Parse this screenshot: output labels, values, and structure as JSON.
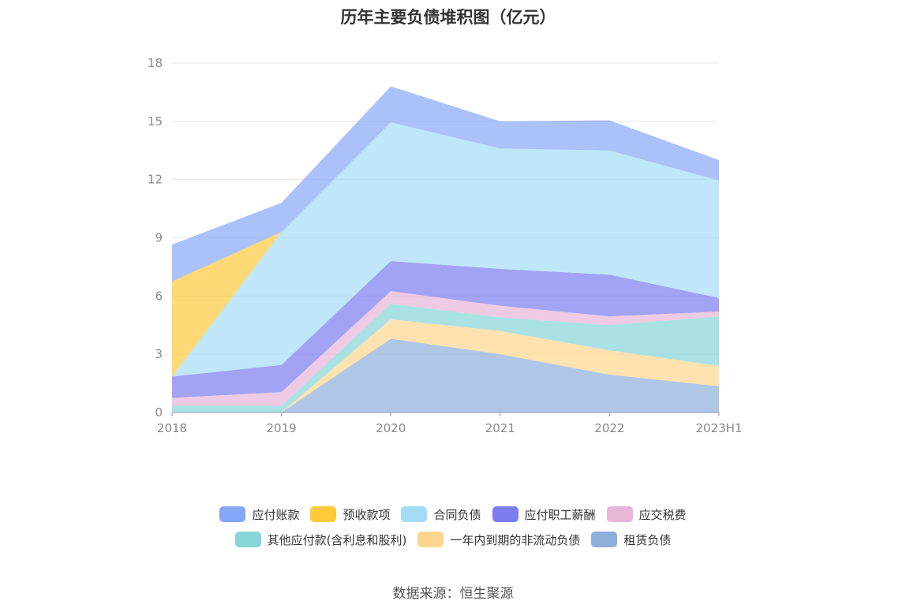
{
  "title": "历年主要负债堆积图（亿元）",
  "source": "数据来源：恒生聚源",
  "chart_data": {
    "type": "area",
    "stacked": true,
    "title": "历年主要负债堆积图（亿元）",
    "categories": [
      "2018",
      "2019",
      "2020",
      "2021",
      "2022",
      "2023H1"
    ],
    "y_ticks": [
      "0",
      "3",
      "6",
      "9",
      "12",
      "15",
      "18"
    ],
    "ylim": [
      0,
      18
    ],
    "grid": true,
    "legend_position": "bottom",
    "series": [
      {
        "name": "租赁负债",
        "color": "#8eaedc",
        "values": [
          0,
          0,
          3.8,
          3.0,
          1.95,
          1.35
        ]
      },
      {
        "name": "一年内到期的非流动负债",
        "color": "#fed58e",
        "values": [
          0,
          0,
          1.0,
          1.2,
          1.25,
          1.05
        ]
      },
      {
        "name": "其他应付款(含利息和股利)",
        "color": "#86d5d8",
        "values": [
          0.35,
          0.35,
          0.8,
          0.7,
          1.3,
          2.55
        ]
      },
      {
        "name": "应交税费",
        "color": "#e8b4d8",
        "values": [
          0.4,
          0.7,
          0.65,
          0.6,
          0.45,
          0.25
        ]
      },
      {
        "name": "应付职工薪酬",
        "color": "#7b7cf0",
        "values": [
          1.1,
          1.4,
          1.55,
          1.9,
          2.15,
          0.7
        ]
      },
      {
        "name": "合同负债",
        "color": "#a4dcf6",
        "values": [
          0,
          6.85,
          7.15,
          6.2,
          6.4,
          6.05
        ]
      },
      {
        "name": "预收款项",
        "color": "#fec93b",
        "values": [
          4.9,
          0,
          0,
          0,
          0,
          0
        ]
      },
      {
        "name": "应付账款",
        "color": "#86a6f8",
        "values": [
          1.9,
          1.5,
          1.85,
          1.4,
          1.55,
          1.05
        ]
      }
    ]
  },
  "legend_rows": [
    [
      {
        "name": "应付账款",
        "color": "#86a6f8"
      },
      {
        "name": "预收款项",
        "color": "#fec93b"
      },
      {
        "name": "合同负债",
        "color": "#a4dcf6"
      },
      {
        "name": "应付职工薪酬",
        "color": "#7b7cf0"
      },
      {
        "name": "应交税费",
        "color": "#e8b4d8"
      }
    ],
    [
      {
        "name": "其他应付款(含利息和股利)",
        "color": "#86d5d8"
      },
      {
        "name": "一年内到期的非流动负债",
        "color": "#fed58e"
      },
      {
        "name": "租赁负债",
        "color": "#8eaedc"
      }
    ]
  ]
}
